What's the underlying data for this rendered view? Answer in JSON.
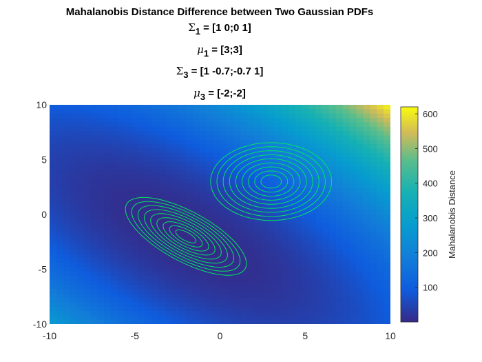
{
  "chart_data": {
    "type": "heatmap",
    "title": "Mahalanobis Distance Difference between Two Gaussian PDFs",
    "annotations": [
      {
        "sym": "Σ",
        "sub": "1",
        "value": " = [1 0;0 1]"
      },
      {
        "sym": "μ",
        "sub": "1",
        "value": " = [3;3]"
      },
      {
        "sym": "Σ",
        "sub": "3",
        "value": " = [1 -0.7;-0.7 1]"
      },
      {
        "sym": "μ",
        "sub": "3",
        "value": " = [-2;-2]"
      }
    ],
    "xlim": [
      -10,
      10
    ],
    "ylim": [
      -10,
      10
    ],
    "x_ticks": [
      -10,
      -5,
      0,
      5,
      10
    ],
    "y_ticks": [
      -10,
      -5,
      0,
      5,
      10
    ],
    "x_tick_labels": [
      "-10",
      "-5",
      "0",
      "5",
      "10"
    ],
    "y_tick_labels": [
      "-10",
      "-5",
      "0",
      "5",
      "10"
    ],
    "colorbar": {
      "label": "Mahalanobis Distance",
      "range": [
        0,
        620
      ],
      "ticks": [
        100,
        200,
        300,
        400,
        500,
        600
      ],
      "tick_labels": [
        "100",
        "200",
        "300",
        "400",
        "500",
        "600"
      ],
      "colormap": "parula"
    },
    "gaussians": [
      {
        "mean": [
          3,
          3
        ],
        "cov": [
          [
            1,
            0
          ],
          [
            0,
            1
          ]
        ]
      },
      {
        "mean": [
          -2,
          -2
        ],
        "cov": [
          [
            1,
            -0.7
          ],
          [
            -0.7,
            1
          ]
        ]
      }
    ],
    "contour_color": "#00e660",
    "contour_levels": 9
  }
}
